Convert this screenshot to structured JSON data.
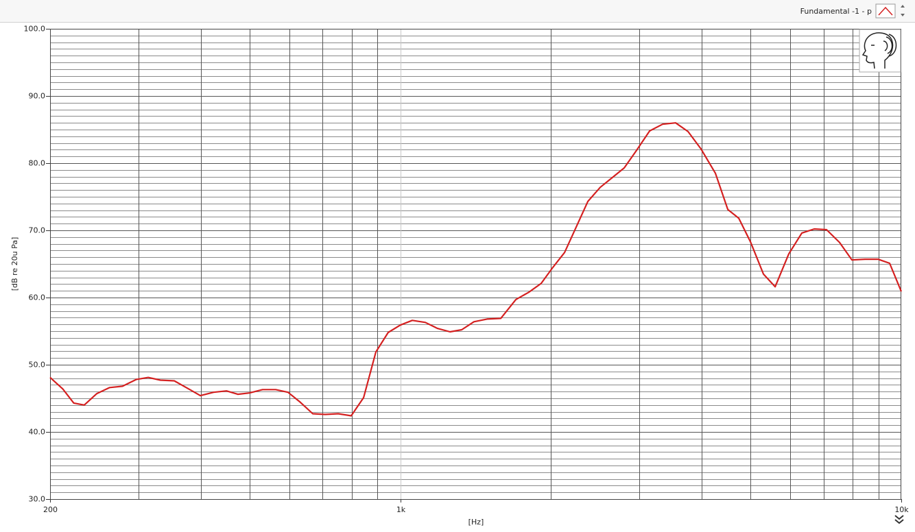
{
  "chart_data": {
    "type": "line",
    "xlabel": "[Hz]",
    "ylabel": "[dB re 20u Pa]",
    "xscale": "log",
    "xlim": [
      200,
      10000
    ],
    "ylim": [
      30,
      100
    ],
    "xticks": [
      200,
      {
        "value": 1000,
        "label": "1k"
      },
      {
        "value": 10000,
        "label": "10k"
      }
    ],
    "xminor": [
      300,
      400,
      500,
      600,
      700,
      800,
      900,
      2000,
      3000,
      4000,
      5000,
      6000,
      7000,
      8000,
      9000
    ],
    "yticks": [
      {
        "value": 30,
        "label": "30.0"
      },
      {
        "value": 40,
        "label": "40.0"
      },
      {
        "value": 50,
        "label": "50.0"
      },
      {
        "value": 60,
        "label": "60.0"
      },
      {
        "value": 70,
        "label": "70.0"
      },
      {
        "value": 80,
        "label": "80.0"
      },
      {
        "value": 90,
        "label": "90.0"
      },
      {
        "value": 100,
        "label": "100.0"
      }
    ],
    "yminor": [
      31,
      32,
      33,
      34,
      35,
      36,
      37,
      38,
      39,
      41,
      42,
      43,
      44,
      45,
      46,
      47,
      48,
      49,
      51,
      52,
      53,
      54,
      55,
      56,
      57,
      58,
      59,
      61,
      62,
      63,
      64,
      65,
      66,
      67,
      68,
      69,
      71,
      72,
      73,
      74,
      75,
      76,
      77,
      78,
      79,
      81,
      82,
      83,
      84,
      85,
      86,
      87,
      88,
      89,
      91,
      92,
      93,
      94,
      95,
      96,
      97,
      98,
      99
    ],
    "grid": true,
    "legend": "top-right",
    "x": [
      200,
      212,
      223,
      234,
      248,
      263,
      279,
      297,
      314,
      332,
      354,
      376,
      399,
      424,
      450,
      474,
      500,
      531,
      564,
      597,
      632,
      669,
      708,
      752,
      798,
      845,
      894,
      946,
      1000,
      1057,
      1122,
      1187,
      1257,
      1326,
      1403,
      1490,
      1587,
      1701,
      1806,
      1911,
      2017,
      2128,
      2245,
      2368,
      2506,
      2654,
      2799,
      2962,
      3146,
      3339,
      3545,
      3753,
      3985,
      4256,
      4506,
      4739,
      5000,
      5307,
      5600,
      5964,
      6331,
      6702,
      7093,
      7530,
      7970,
      8463,
      8985,
      9478,
      10000
    ],
    "series": [
      {
        "name": "Fundamental -1 - p",
        "color": "#d42020",
        "values": [
          48.1,
          46.4,
          44.3,
          44.0,
          45.7,
          46.6,
          46.8,
          47.8,
          48.1,
          47.7,
          47.6,
          46.5,
          45.4,
          45.9,
          46.1,
          45.6,
          45.8,
          46.3,
          46.3,
          45.9,
          44.4,
          42.7,
          42.6,
          42.7,
          42.4,
          45.1,
          51.9,
          54.8,
          55.9,
          56.6,
          56.3,
          55.4,
          54.9,
          55.2,
          56.4,
          56.8,
          56.9,
          59.7,
          60.8,
          62.1,
          64.5,
          66.7,
          70.5,
          74.3,
          76.4,
          77.9,
          79.3,
          81.9,
          84.8,
          85.8,
          86.0,
          84.7,
          82.1,
          78.5,
          73.1,
          71.8,
          68.3,
          63.5,
          61.6,
          66.5,
          69.6,
          70.2,
          70.1,
          68.2,
          65.6,
          65.7,
          65.7,
          65.1,
          60.9
        ]
      }
    ]
  }
}
